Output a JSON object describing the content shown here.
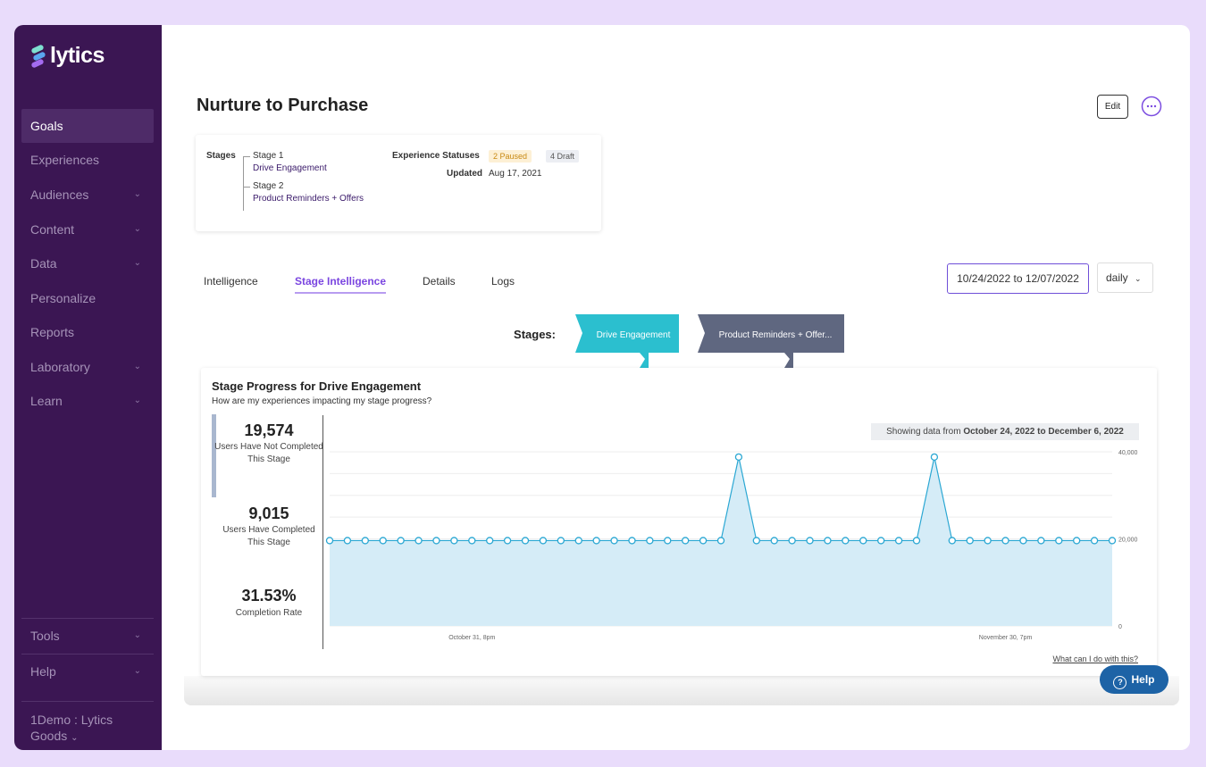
{
  "sidebar": {
    "logo": "lytics",
    "nav": [
      "Goals",
      "Experiences",
      "Audiences",
      "Content",
      "Data",
      "Personalize",
      "Reports",
      "Laboratory",
      "Learn"
    ],
    "footer_nav": [
      "Tools",
      "Help"
    ],
    "account": "1Demo : Lytics Goods"
  },
  "header": {
    "title": "Nurture to Purchase",
    "edit": "Edit"
  },
  "summary": {
    "stages_label": "Stages",
    "stages": [
      {
        "name": "Stage 1",
        "goal": "Drive Engagement"
      },
      {
        "name": "Stage 2",
        "goal": "Product Reminders + Offers"
      }
    ],
    "statuses_label": "Experience Statuses",
    "statuses": [
      "2 Paused",
      "4 Draft"
    ],
    "updated_label": "Updated",
    "updated": "Aug 17, 2021"
  },
  "tabs": [
    "Intelligence",
    "Stage Intelligence",
    "Details",
    "Logs"
  ],
  "active_tab": 1,
  "date_range": "10/24/2022 to 12/07/2022",
  "interval": "daily",
  "stage_flow": {
    "label": "Stages:",
    "stages": [
      "Drive Engagement",
      "Product Reminders + Offer..."
    ]
  },
  "panel": {
    "title": "Stage Progress for Drive Engagement",
    "subtitle": "How are my experiences impacting my stage progress?",
    "stats": [
      {
        "value": "19,574",
        "label": "Users Have Not Completed This Stage"
      },
      {
        "value": "9,015",
        "label": "Users Have Completed This Stage"
      },
      {
        "value": "31.53%",
        "label": "Completion Rate"
      }
    ],
    "range_note_prefix": "Showing data from",
    "range_note_dates": "October 24, 2022 to December 6, 2022",
    "help_link": "What can I do with this?"
  },
  "help_button": "Help",
  "chart_data": {
    "type": "area",
    "categories": [
      null,
      null,
      null,
      null,
      null,
      null,
      null,
      null,
      "October 31, 8pm",
      null,
      null,
      null,
      null,
      null,
      null,
      null,
      null,
      null,
      null,
      null,
      null,
      null,
      null,
      null,
      null,
      null,
      null,
      null,
      null,
      null,
      null,
      null,
      null,
      null,
      null,
      null,
      null,
      null,
      "November 30, 7pm",
      null,
      null,
      null,
      null,
      null,
      null
    ],
    "values": [
      19600,
      19600,
      19600,
      19600,
      19600,
      19600,
      19600,
      19600,
      19600,
      19600,
      19600,
      19600,
      19600,
      19600,
      19600,
      19600,
      19600,
      19600,
      19600,
      19600,
      19600,
      19600,
      19600,
      38800,
      19600,
      19600,
      19600,
      19600,
      19600,
      19600,
      19600,
      19600,
      19600,
      19600,
      38800,
      19600,
      19600,
      19600,
      19600,
      19600,
      19600,
      19600,
      19600,
      19600,
      19600
    ],
    "color": "#2aa7d3",
    "fill": "#d5ecf7",
    "ylim": [
      0,
      40000
    ],
    "yticks": [
      0,
      {
        "value": 20000,
        "label": "20,000"
      },
      {
        "value": 40000,
        "label": "40,000"
      }
    ],
    "ygrid": [
      0,
      5000,
      10000,
      15000,
      20000,
      25000,
      30000,
      35000,
      40000
    ],
    "grid": true
  }
}
